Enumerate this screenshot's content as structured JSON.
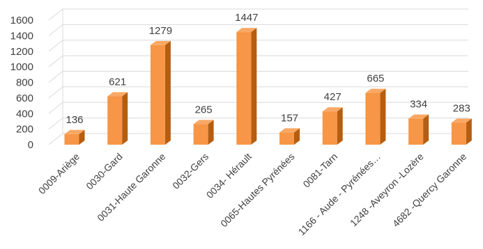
{
  "chart_data": {
    "type": "bar",
    "style": "3d-column",
    "categories": [
      "0009-Ariège",
      "0030-Gard",
      "0031-Haute Garonne",
      "0032-Gers",
      "0034- Hérault",
      "0065-Hautes Pyrénées",
      "0081-Tarn",
      "1166 - Aude - Pyrénées…",
      "1248 -Aveyron -Lozère",
      "4682 -Quercy Garonne"
    ],
    "values": [
      136,
      621,
      1279,
      265,
      1447,
      157,
      427,
      665,
      334,
      283
    ],
    "data_labels": [
      "136",
      "621",
      "1279",
      "265",
      "1447",
      "157",
      "427",
      "665",
      "334",
      "283"
    ],
    "yticks": [
      "0",
      "200",
      "400",
      "600",
      "800",
      "1000",
      "1200",
      "1400",
      "1600"
    ],
    "ylim": [
      0,
      1600
    ],
    "grid": true,
    "legend": "none",
    "colors": {
      "bar_front": "#f79646",
      "bar_side": "#b65d10",
      "bar_top": "#f9a865",
      "grid": "#d9d9d9",
      "text": "#404040"
    }
  }
}
